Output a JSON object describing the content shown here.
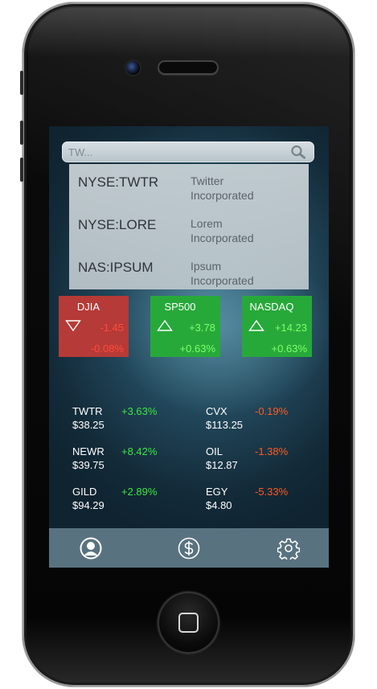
{
  "search": {
    "placeholder": "TW..."
  },
  "suggestions": [
    {
      "symbol": "NYSE:TWTR",
      "name_line1": "Twitter",
      "name_line2": "Incorporated"
    },
    {
      "symbol": "NYSE:LORE",
      "name_line1": "Lorem",
      "name_line2": "Incorporated"
    },
    {
      "symbol": "NAS:IPSUM",
      "name_line1": "Ipsum",
      "name_line2": "Incorporated"
    }
  ],
  "indices": [
    {
      "name": "DJIA",
      "change": "-1.45",
      "percent": "-0.08%",
      "direction": "down"
    },
    {
      "name": "SP500",
      "change": "+3.78",
      "percent": "+0.63%",
      "direction": "up"
    },
    {
      "name": "NASDAQ",
      "change": "+14.23",
      "percent": "+0.63%",
      "direction": "up"
    }
  ],
  "watchlist": [
    {
      "symbol": "TWTR",
      "price": "$38.25",
      "change": "+3.63%"
    },
    {
      "symbol": "NEWR",
      "price": "$39.75",
      "change": "+8.42%"
    },
    {
      "symbol": "GILD",
      "price": "$94.29",
      "change": "+2.89%"
    },
    {
      "symbol": "CVX",
      "price": "$113.25",
      "change": "-0.19%"
    },
    {
      "symbol": "OIL",
      "price": "$12.87",
      "change": "-1.38%"
    },
    {
      "symbol": "EGY",
      "price": "$4.80",
      "change": "-5.33%"
    }
  ],
  "tabbar": {
    "icons": [
      "profile-icon",
      "dollar-icon",
      "gear-icon"
    ]
  },
  "colors": {
    "up_tile": "#27a93a",
    "down_tile": "#b63a37",
    "positive_text": "#38e83f",
    "negative_text": "#ff5a22"
  }
}
